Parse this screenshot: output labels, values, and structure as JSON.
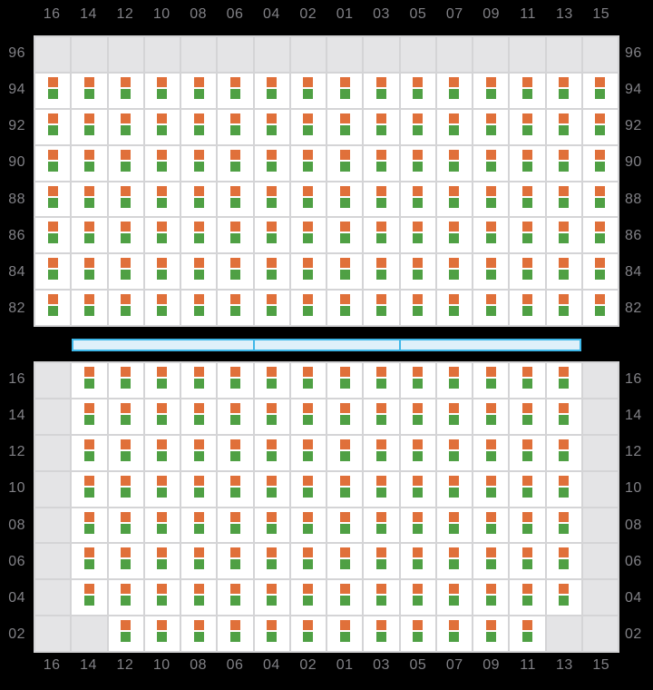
{
  "colors": {
    "background": "#000000",
    "grid_line": "#d4d4d6",
    "filled_cell": "#ffffff",
    "empty_cell": "#e4e4e6",
    "slot_top": "#e0703a",
    "slot_bottom": "#4fa044",
    "hatch_border": "#3eb7e8",
    "hatch_fill": "#def0fa",
    "label_text": "#818186"
  },
  "columns": [
    "16",
    "14",
    "12",
    "10",
    "08",
    "06",
    "04",
    "02",
    "01",
    "03",
    "05",
    "07",
    "09",
    "11",
    "13",
    "15"
  ],
  "above_deck": {
    "rows": [
      {
        "label": "96",
        "filled_columns": []
      },
      {
        "label": "94",
        "filled_columns": [
          "16",
          "14",
          "12",
          "10",
          "08",
          "06",
          "04",
          "02",
          "01",
          "03",
          "05",
          "07",
          "09",
          "11",
          "13",
          "15"
        ]
      },
      {
        "label": "92",
        "filled_columns": [
          "16",
          "14",
          "12",
          "10",
          "08",
          "06",
          "04",
          "02",
          "01",
          "03",
          "05",
          "07",
          "09",
          "11",
          "13",
          "15"
        ]
      },
      {
        "label": "90",
        "filled_columns": [
          "16",
          "14",
          "12",
          "10",
          "08",
          "06",
          "04",
          "02",
          "01",
          "03",
          "05",
          "07",
          "09",
          "11",
          "13",
          "15"
        ]
      },
      {
        "label": "88",
        "filled_columns": [
          "16",
          "14",
          "12",
          "10",
          "08",
          "06",
          "04",
          "02",
          "01",
          "03",
          "05",
          "07",
          "09",
          "11",
          "13",
          "15"
        ]
      },
      {
        "label": "86",
        "filled_columns": [
          "16",
          "14",
          "12",
          "10",
          "08",
          "06",
          "04",
          "02",
          "01",
          "03",
          "05",
          "07",
          "09",
          "11",
          "13",
          "15"
        ]
      },
      {
        "label": "84",
        "filled_columns": [
          "16",
          "14",
          "12",
          "10",
          "08",
          "06",
          "04",
          "02",
          "01",
          "03",
          "05",
          "07",
          "09",
          "11",
          "13",
          "15"
        ]
      },
      {
        "label": "82",
        "filled_columns": [
          "16",
          "14",
          "12",
          "10",
          "08",
          "06",
          "04",
          "02",
          "01",
          "03",
          "05",
          "07",
          "09",
          "11",
          "13",
          "15"
        ]
      }
    ]
  },
  "below_deck": {
    "rows": [
      {
        "label": "16",
        "filled_columns": [
          "14",
          "12",
          "10",
          "08",
          "06",
          "04",
          "02",
          "01",
          "03",
          "05",
          "07",
          "09",
          "11",
          "13"
        ]
      },
      {
        "label": "14",
        "filled_columns": [
          "14",
          "12",
          "10",
          "08",
          "06",
          "04",
          "02",
          "01",
          "03",
          "05",
          "07",
          "09",
          "11",
          "13"
        ]
      },
      {
        "label": "12",
        "filled_columns": [
          "14",
          "12",
          "10",
          "08",
          "06",
          "04",
          "02",
          "01",
          "03",
          "05",
          "07",
          "09",
          "11",
          "13"
        ]
      },
      {
        "label": "10",
        "filled_columns": [
          "14",
          "12",
          "10",
          "08",
          "06",
          "04",
          "02",
          "01",
          "03",
          "05",
          "07",
          "09",
          "11",
          "13"
        ]
      },
      {
        "label": "08",
        "filled_columns": [
          "14",
          "12",
          "10",
          "08",
          "06",
          "04",
          "02",
          "01",
          "03",
          "05",
          "07",
          "09",
          "11",
          "13"
        ]
      },
      {
        "label": "06",
        "filled_columns": [
          "14",
          "12",
          "10",
          "08",
          "06",
          "04",
          "02",
          "01",
          "03",
          "05",
          "07",
          "09",
          "11",
          "13"
        ]
      },
      {
        "label": "04",
        "filled_columns": [
          "14",
          "12",
          "10",
          "08",
          "06",
          "04",
          "02",
          "01",
          "03",
          "05",
          "07",
          "09",
          "11",
          "13"
        ]
      },
      {
        "label": "02",
        "filled_columns": [
          "12",
          "10",
          "08",
          "06",
          "04",
          "02",
          "01",
          "03",
          "05",
          "07",
          "09",
          "11"
        ]
      }
    ]
  },
  "hatch_covers": {
    "segment_count": 3
  }
}
